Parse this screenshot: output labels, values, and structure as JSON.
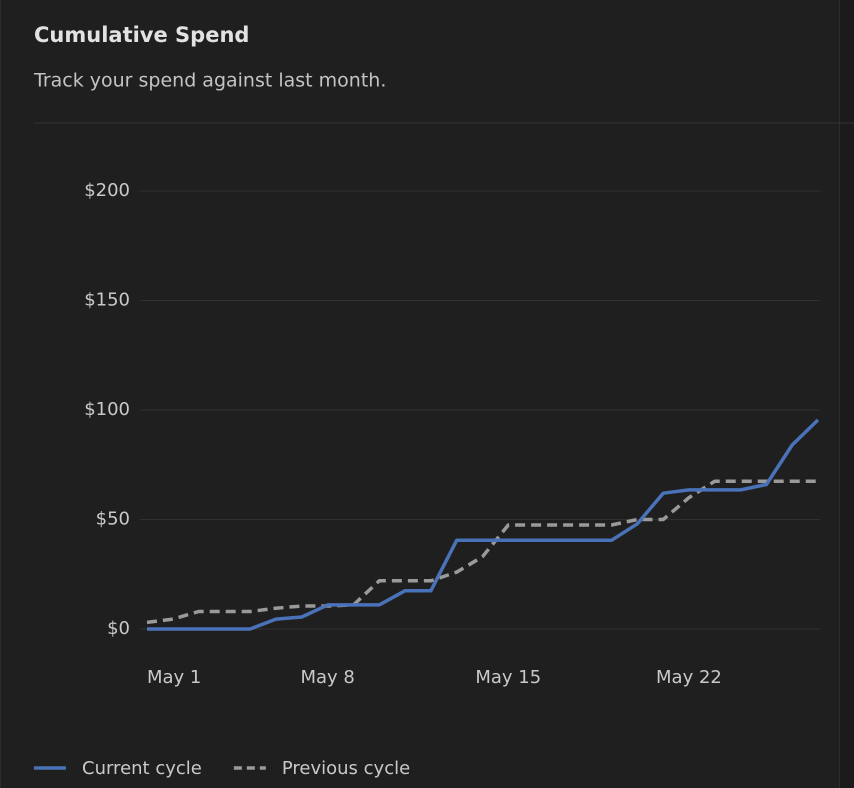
{
  "chart_data": {
    "type": "line",
    "title": "Cumulative Spend",
    "subtitle": "Track your spend against last month.",
    "categories": [
      "May 1",
      null,
      null,
      null,
      null,
      null,
      null,
      "May 8",
      null,
      null,
      null,
      null,
      null,
      null,
      "May 15",
      null,
      null,
      null,
      null,
      null,
      null,
      "May 22",
      null,
      null,
      null,
      null,
      null
    ],
    "series": [
      {
        "name": "Current cycle",
        "color": "#4a72b8",
        "dashed": false,
        "values": [
          0,
          0,
          0,
          0,
          0,
          4.5,
          5.5,
          11,
          11,
          11,
          17.5,
          17.5,
          40.5,
          40.5,
          40.5,
          40.5,
          40.5,
          40.5,
          40.5,
          48,
          62,
          63.5,
          63.5,
          63.5,
          66,
          84,
          95.5
        ]
      },
      {
        "name": "Previous cycle",
        "color": "#9a9a9a",
        "dashed": true,
        "values": [
          3,
          4.5,
          8,
          8,
          8,
          9.5,
          10.5,
          10.5,
          11,
          22,
          22,
          22,
          26,
          33,
          47.5,
          47.5,
          47.5,
          47.5,
          47.5,
          50,
          50,
          60,
          67.5,
          67.5,
          67.5,
          67.5,
          67.5
        ]
      }
    ],
    "ylim": [
      0,
      200
    ],
    "yticks": [
      {
        "value": 0,
        "label": "$0"
      },
      {
        "value": 50,
        "label": "$50"
      },
      {
        "value": 100,
        "label": "$100"
      },
      {
        "value": 150,
        "label": "$150"
      },
      {
        "value": 200,
        "label": "$200"
      }
    ],
    "grid": true
  }
}
